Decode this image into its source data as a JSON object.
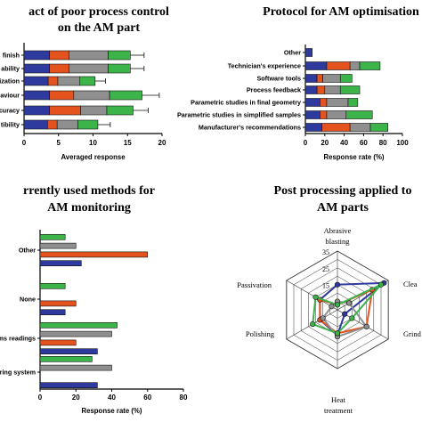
{
  "colors": {
    "blue": "#2f3a9e",
    "orange": "#e4521e",
    "gray": "#8f8f8f",
    "green": "#3cb44a"
  },
  "chart_data": [
    {
      "id": "p1",
      "type": "bar",
      "stacked": true,
      "orientation": "horizontal",
      "title_lines": [
        "act of poor process control",
        "on the AM part"
      ],
      "categories": [
        "finish",
        "ability",
        "ization",
        "aviour",
        "curacy",
        "tibility"
      ],
      "series": [
        {
          "color": "blue",
          "values": [
            3.7,
            3.7,
            3.5,
            3.7,
            3.7,
            3.4
          ],
          "err": [
            0,
            0,
            0,
            0,
            0,
            0
          ]
        },
        {
          "color": "orange",
          "values": [
            2.8,
            2.8,
            1.4,
            3.5,
            4.5,
            1.4
          ],
          "err": [
            1.0,
            1.0,
            0.8,
            1.2,
            1.5,
            0.8
          ]
        },
        {
          "color": "gray",
          "values": [
            5.7,
            5.7,
            3.2,
            5.2,
            3.8,
            3.0
          ],
          "err": [
            1.0,
            1.0,
            0.8,
            1.5,
            1.2,
            0.9
          ]
        },
        {
          "color": "green",
          "values": [
            3.2,
            3.2,
            2.2,
            4.7,
            3.8,
            2.9
          ],
          "err": [
            2.0,
            2.0,
            1.5,
            2.5,
            2.2,
            1.8
          ]
        }
      ],
      "xlabel": "Averaged response",
      "xlim": [
        0,
        20
      ],
      "xticks": [
        0,
        5,
        10,
        15,
        20
      ]
    },
    {
      "id": "p2",
      "type": "bar",
      "stacked": true,
      "orientation": "horizontal",
      "title_lines": [
        "Protocol for AM optimisation"
      ],
      "categories": [
        "Other",
        "Technician's experience",
        "Software tools",
        "Process feedback",
        "Parametric studies in final geometry",
        "Parametric studies in simplified samples",
        "Manufacturer's recommendations"
      ],
      "series": [
        {
          "color": "blue",
          "values": [
            7,
            22,
            12,
            12,
            15,
            15,
            17
          ]
        },
        {
          "color": "orange",
          "values": [
            0,
            24,
            6,
            8,
            7,
            7,
            29
          ]
        },
        {
          "color": "gray",
          "values": [
            0,
            10,
            18,
            16,
            22,
            20,
            21
          ]
        },
        {
          "color": "green",
          "values": [
            0,
            21,
            12,
            20,
            10,
            27,
            18
          ]
        }
      ],
      "xlabel": "Response rate (%)",
      "xlim": [
        0,
        100
      ],
      "xticks": [
        0,
        20,
        40,
        60,
        80,
        100
      ]
    },
    {
      "id": "p3",
      "type": "bar",
      "stacked": false,
      "orientation": "horizontal",
      "title_lines": [
        "rrently used methods for",
        "AM monitoring"
      ],
      "categories": [
        "Other",
        "None",
        "ems readings",
        "oring system"
      ],
      "series": [
        {
          "color": "green",
          "values": [
            14,
            14,
            43,
            29
          ]
        },
        {
          "color": "gray",
          "values": [
            20,
            0,
            40,
            40
          ]
        },
        {
          "color": "orange",
          "values": [
            60,
            20,
            20,
            0
          ]
        },
        {
          "color": "blue",
          "values": [
            23,
            14,
            32,
            32
          ]
        }
      ],
      "xlabel": "Response rate (%)",
      "xlim": [
        0,
        80
      ],
      "xticks": [
        0,
        20,
        40,
        60,
        80
      ]
    },
    {
      "id": "p4",
      "type": "radar",
      "title_lines": [
        "Post processing applied to",
        "AM parts"
      ],
      "axes": [
        "Abrasive blasting",
        "Clea",
        "Grind",
        "Heat treatment",
        "Polishing",
        "Passivation"
      ],
      "axis_label_lines": [
        [
          "Abrasive",
          "blasting"
        ],
        [
          "Clea"
        ],
        [
          "Grind"
        ],
        [
          "Heat",
          "treatment"
        ],
        [
          "Polishing"
        ],
        [
          "Passivation"
        ]
      ],
      "rticks": [
        15,
        25,
        35
      ],
      "rmax": 35,
      "series": [
        {
          "color": "blue",
          "values": [
            15,
            32,
            5,
            15,
            12,
            12
          ]
        },
        {
          "color": "orange",
          "values": [
            3,
            24,
            20,
            14,
            12,
            12
          ]
        },
        {
          "color": "gray",
          "values": [
            5,
            8,
            20,
            16,
            10,
            4
          ]
        },
        {
          "color": "green",
          "values": [
            3,
            30,
            10,
            14,
            17,
            15
          ]
        }
      ]
    }
  ]
}
